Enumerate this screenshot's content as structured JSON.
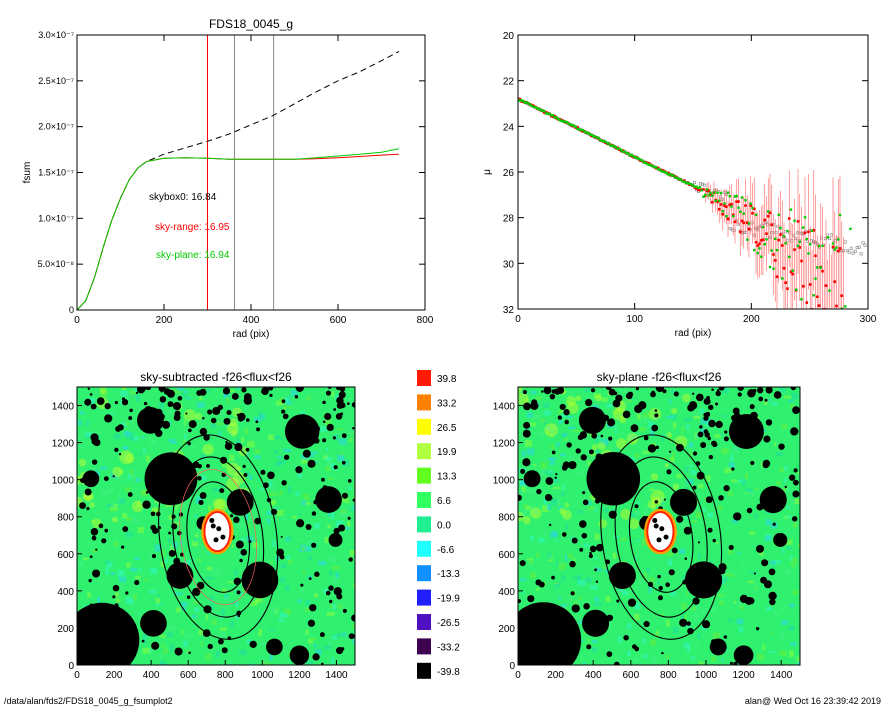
{
  "footer": {
    "path": "/data/alan/fds2/FDS18_0045_g_fsumplot2",
    "stamp": "alan@  Wed Oct 16 23:39:42 2019"
  },
  "colorbar": {
    "labels": [
      "39.8",
      "33.2",
      "26.5",
      "19.9",
      "13.3",
      "6.6",
      "0.0",
      "-6.6",
      "-13.3",
      "-19.9",
      "-26.5",
      "-33.2",
      "-39.8"
    ],
    "colors": [
      "#ff1a00",
      "#ff8000",
      "#ffff00",
      "#b0ff40",
      "#60ff20",
      "#30ff60",
      "#20f090",
      "#20ffff",
      "#1090ff",
      "#2020ff",
      "#5010c0",
      "#400050",
      "#000000"
    ]
  },
  "chart_data": [
    {
      "type": "line",
      "title": "FDS18_0045_g",
      "xlabel": "rad (pix)",
      "ylabel": "fsum",
      "xlim": [
        0,
        800
      ],
      "ylim": [
        0,
        3e-07
      ],
      "xticks": [
        "0",
        "200",
        "400",
        "600",
        "800"
      ],
      "yticks": [
        "0",
        "5.0×10⁻⁸",
        "1.0×10⁻⁷",
        "1.5×10⁻⁷",
        "2.0×10⁻⁷",
        "2.5×10⁻⁷",
        "3.0×10⁻⁷"
      ],
      "vlines": [
        {
          "x": 300,
          "color": "#ff0000"
        },
        {
          "x": 362,
          "color": "#888888"
        },
        {
          "x": 452,
          "color": "#888888"
        }
      ],
      "annotations": [
        {
          "text": "skybox0: 16.84",
          "color": "#000000"
        },
        {
          "text": "sky-range: 16.95",
          "color": "#ff0000"
        },
        {
          "text": "sky-plane: 16.94",
          "color": "#00cc00"
        }
      ],
      "series": [
        {
          "style": "dashed",
          "color": "#000000",
          "x": [
            0,
            20,
            40,
            60,
            80,
            100,
            120,
            140,
            160,
            200,
            250,
            300,
            350,
            400,
            450,
            500,
            550,
            600,
            650,
            700,
            740
          ],
          "y": [
            0,
            1e-08,
            3.5e-08,
            6.8e-08,
            9.8e-08,
            1.22e-07,
            1.42e-07,
            1.55e-07,
            1.62e-07,
            1.7e-07,
            1.77e-07,
            1.84e-07,
            1.92e-07,
            2.02e-07,
            2.12e-07,
            2.25e-07,
            2.38e-07,
            2.5e-07,
            2.6e-07,
            2.72e-07,
            2.82e-07
          ]
        },
        {
          "style": "solid",
          "color": "#ff0000",
          "x": [
            0,
            20,
            40,
            60,
            80,
            100,
            120,
            140,
            160,
            200,
            250,
            300,
            350,
            400,
            450,
            500,
            550,
            600,
            650,
            700,
            740
          ],
          "y": [
            0,
            1e-08,
            3.5e-08,
            6.8e-08,
            9.8e-08,
            1.22e-07,
            1.42e-07,
            1.55e-07,
            1.62e-07,
            1.655e-07,
            1.66e-07,
            1.655e-07,
            1.645e-07,
            1.645e-07,
            1.645e-07,
            1.645e-07,
            1.65e-07,
            1.66e-07,
            1.675e-07,
            1.69e-07,
            1.7e-07
          ]
        },
        {
          "style": "solid",
          "color": "#00cc00",
          "x": [
            0,
            20,
            40,
            60,
            80,
            100,
            120,
            140,
            160,
            200,
            250,
            300,
            350,
            400,
            450,
            500,
            550,
            600,
            650,
            700,
            740
          ],
          "y": [
            0,
            1e-08,
            3.5e-08,
            6.8e-08,
            9.8e-08,
            1.22e-07,
            1.42e-07,
            1.55e-07,
            1.62e-07,
            1.655e-07,
            1.66e-07,
            1.655e-07,
            1.645e-07,
            1.645e-07,
            1.645e-07,
            1.645e-07,
            1.66e-07,
            1.68e-07,
            1.7e-07,
            1.72e-07,
            1.76e-07
          ]
        }
      ]
    },
    {
      "type": "scatter",
      "title": "",
      "xlabel": "rad (pix)",
      "ylabel": "μ",
      "xlim": [
        0,
        300
      ],
      "ylim": [
        32,
        20
      ],
      "xticks": [
        "0",
        "100",
        "200",
        "300"
      ],
      "yticks": [
        "20",
        "22",
        "24",
        "26",
        "28",
        "30",
        "32"
      ],
      "trend": {
        "x": [
          0,
          50,
          100,
          150,
          175
        ],
        "y": [
          22.8,
          24.05,
          25.35,
          26.6,
          27.3
        ]
      },
      "series": [
        {
          "name": "",
          "color": "#00cc00",
          "note": "sky-plane profile"
        },
        {
          "name": "",
          "color": "#ff0000",
          "note": "sky-range profile"
        },
        {
          "name": "",
          "color": "#888888",
          "note": "skybox0 profile"
        }
      ]
    },
    {
      "type": "heatmap",
      "title": "sky-subtracted -f26<flux<f26",
      "xlim": [
        0,
        1500
      ],
      "ylim": [
        0,
        1500
      ],
      "xticks": [
        "0",
        "200",
        "400",
        "600",
        "800",
        "1000",
        "1200",
        "1400"
      ],
      "yticks": [
        "0",
        "200",
        "400",
        "600",
        "800",
        "1000",
        "1200",
        "1400"
      ]
    },
    {
      "type": "heatmap",
      "title": "sky-plane -f26<flux<f26",
      "xlim": [
        0,
        1500
      ],
      "ylim": [
        0,
        1500
      ],
      "xticks": [
        "0",
        "200",
        "400",
        "600",
        "800",
        "1000",
        "1200",
        "1400"
      ],
      "yticks": [
        "0",
        "200",
        "400",
        "600",
        "800",
        "1000",
        "1200",
        "1400"
      ]
    }
  ]
}
